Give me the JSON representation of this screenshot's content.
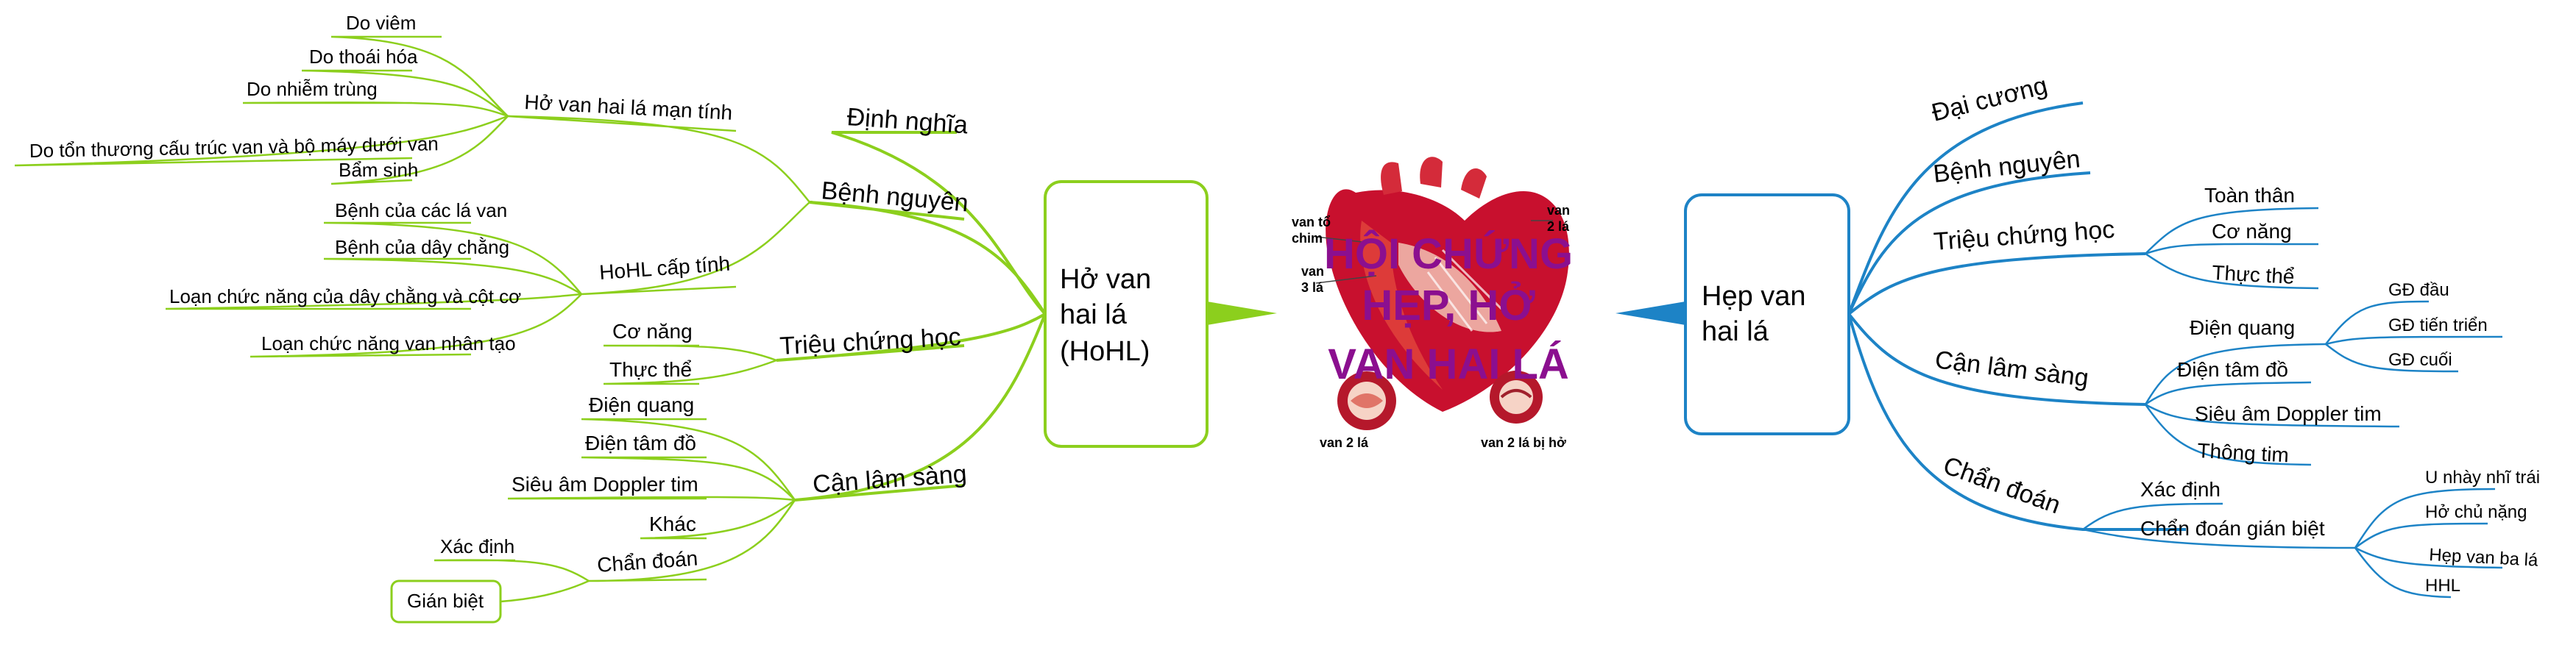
{
  "center": {
    "title_lines": [
      "HỘI CHỨNG",
      "HẸP, HỞ",
      "VAN HAI LÁ"
    ],
    "image_labels": {
      "tricuspid": [
        "van tổ",
        "chim"
      ],
      "three_leaf": [
        "van",
        "3 lá"
      ],
      "two_leaf_top": [
        "van",
        "2 lá"
      ],
      "bottom_left": "van 2 lá",
      "bottom_right": "van 2 lá bị hở"
    }
  },
  "left_root": {
    "lines": [
      "Hở van",
      "hai lá",
      "(HoHL)"
    ],
    "color": "#8ccf1d",
    "branches": {
      "dinh_nghia": "Định nghĩa",
      "benh_nguyen": {
        "label": "Bệnh nguyên",
        "man_tinh": {
          "label": "Hở van hai lá mạn tính",
          "items": [
            "Do viêm",
            "Do thoái hóa",
            "Do nhiễm trùng",
            "Do tổn thương cấu trúc van và bộ máy dưới van",
            "Bẩm sinh"
          ]
        },
        "cap_tinh": {
          "label": "HoHL cấp tính",
          "items": [
            "Bệnh của các lá van",
            "Bệnh của dây chằng",
            "Loạn chức năng của dây chằng và cột cơ",
            "Loạn chức năng van nhân tạo"
          ]
        }
      },
      "trieu_chung": {
        "label": "Triệu chứng học",
        "items": [
          "Cơ năng",
          "Thực thể"
        ]
      },
      "can_lam_sang": {
        "label": "Cận lâm sàng",
        "items": [
          "Điện quang",
          "Điện tâm đồ",
          "Siêu âm Doppler tim",
          "Khác"
        ],
        "chan_doan": {
          "label": "Chẩn đoán",
          "items": [
            "Xác định",
            "Gián biệt"
          ]
        }
      }
    }
  },
  "right_root": {
    "lines": [
      "Hẹp van",
      "hai lá"
    ],
    "color": "#1d83c6",
    "branches": {
      "dai_cuong": "Đại cương",
      "benh_nguyen": "Bệnh nguyên",
      "trieu_chung": {
        "label": "Triệu chứng học",
        "items": [
          "Toàn thân",
          "Cơ năng",
          "Thực thể"
        ]
      },
      "can_lam_sang": {
        "label": "Cận lâm sàng",
        "dien_quang": {
          "label": "Điện quang",
          "items": [
            "GĐ đầu",
            "GĐ tiến triển",
            "GĐ cuối"
          ]
        },
        "items": [
          "Điện tâm đồ",
          "Siêu âm Doppler tim",
          "Thông tim"
        ]
      },
      "chan_doan": {
        "label": "Chẩn đoán",
        "xac_dinh": "Xác định",
        "gian_biet": {
          "label": "Chẩn đoán gián biệt",
          "items": [
            "U nhày nhĩ trái",
            "Hở chủ nặng",
            "Hẹp van ba lá",
            "HHL"
          ]
        }
      }
    }
  },
  "colors": {
    "left_branch": "#8ccf1d",
    "right_branch": "#1d83c6",
    "center_title": "#8b0f8f",
    "heart_red": "#c8102e"
  }
}
